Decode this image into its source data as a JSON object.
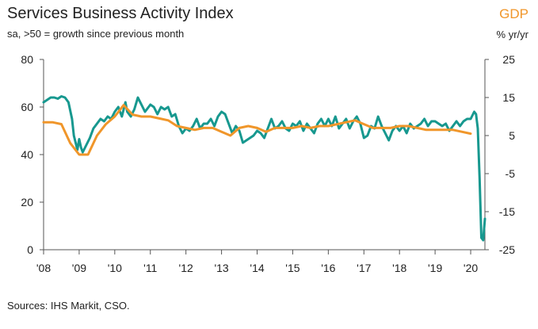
{
  "header": {
    "title": "Services Business Activity Index",
    "subtitle": "sa, >50 = growth since previous month",
    "right_title": "GDP",
    "right_unit": "% yr/yr"
  },
  "footer": {
    "source": "Sources: IHS Markit, CSO."
  },
  "colors": {
    "pmi": "#17988f",
    "gdp": "#f0962a",
    "axis": "#555555"
  },
  "chart_data": {
    "type": "line",
    "title": "Services Business Activity Index",
    "subtitle": "sa, >50 = growth since previous month",
    "x_tick_labels": [
      "'08",
      "'09",
      "'10",
      "'11",
      "'12",
      "'13",
      "'14",
      "'15",
      "'16",
      "'17",
      "'18",
      "'19",
      "'20"
    ],
    "x_range": [
      2008.0,
      2020.4
    ],
    "left_axis": {
      "range": [
        0,
        80
      ],
      "ticks": [
        0,
        20,
        40,
        60,
        80
      ],
      "label": "Services Business Activity Index"
    },
    "right_axis": {
      "range": [
        -25,
        25
      ],
      "ticks": [
        -25,
        -15,
        -5,
        5,
        15,
        25
      ],
      "label": "GDP % yr/yr"
    },
    "series": [
      {
        "name": "Services Business Activity Index",
        "axis": "left",
        "points": [
          [
            2008.0,
            62
          ],
          [
            2008.1,
            63
          ],
          [
            2008.2,
            64
          ],
          [
            2008.3,
            64
          ],
          [
            2008.4,
            63.5
          ],
          [
            2008.5,
            64.5
          ],
          [
            2008.6,
            64
          ],
          [
            2008.7,
            62
          ],
          [
            2008.8,
            55
          ],
          [
            2008.85,
            48
          ],
          [
            2008.95,
            42
          ],
          [
            2009.0,
            46.5
          ],
          [
            2009.05,
            43
          ],
          [
            2009.1,
            41
          ],
          [
            2009.2,
            44
          ],
          [
            2009.3,
            47
          ],
          [
            2009.4,
            51
          ],
          [
            2009.5,
            53
          ],
          [
            2009.6,
            55
          ],
          [
            2009.7,
            54
          ],
          [
            2009.8,
            56
          ],
          [
            2009.9,
            55
          ],
          [
            2010.0,
            58
          ],
          [
            2010.1,
            60
          ],
          [
            2010.2,
            56
          ],
          [
            2010.3,
            62
          ],
          [
            2010.35,
            58
          ],
          [
            2010.45,
            56
          ],
          [
            2010.55,
            59
          ],
          [
            2010.65,
            64
          ],
          [
            2010.75,
            61
          ],
          [
            2010.85,
            58
          ],
          [
            2011.0,
            61
          ],
          [
            2011.1,
            60
          ],
          [
            2011.2,
            57
          ],
          [
            2011.3,
            60
          ],
          [
            2011.4,
            59
          ],
          [
            2011.5,
            60
          ],
          [
            2011.6,
            56
          ],
          [
            2011.7,
            57
          ],
          [
            2011.8,
            52
          ],
          [
            2011.9,
            49
          ],
          [
            2012.0,
            51
          ],
          [
            2012.1,
            50
          ],
          [
            2012.2,
            52
          ],
          [
            2012.3,
            55
          ],
          [
            2012.4,
            51
          ],
          [
            2012.5,
            53
          ],
          [
            2012.6,
            53
          ],
          [
            2012.7,
            55
          ],
          [
            2012.8,
            52
          ],
          [
            2012.9,
            56
          ],
          [
            2013.0,
            58
          ],
          [
            2013.1,
            57
          ],
          [
            2013.2,
            53
          ],
          [
            2013.3,
            49
          ],
          [
            2013.4,
            52
          ],
          [
            2013.5,
            50
          ],
          [
            2013.6,
            45
          ],
          [
            2013.7,
            46
          ],
          [
            2013.8,
            47
          ],
          [
            2013.9,
            48
          ],
          [
            2014.0,
            50
          ],
          [
            2014.1,
            49
          ],
          [
            2014.2,
            47
          ],
          [
            2014.3,
            51
          ],
          [
            2014.4,
            55
          ],
          [
            2014.5,
            51
          ],
          [
            2014.6,
            52
          ],
          [
            2014.7,
            54
          ],
          [
            2014.8,
            51
          ],
          [
            2014.9,
            50
          ],
          [
            2015.0,
            53
          ],
          [
            2015.1,
            52
          ],
          [
            2015.2,
            54
          ],
          [
            2015.3,
            50
          ],
          [
            2015.4,
            53
          ],
          [
            2015.5,
            51
          ],
          [
            2015.6,
            49
          ],
          [
            2015.7,
            53
          ],
          [
            2015.8,
            55
          ],
          [
            2015.9,
            52
          ],
          [
            2016.0,
            55
          ],
          [
            2016.1,
            52
          ],
          [
            2016.2,
            56
          ],
          [
            2016.3,
            51
          ],
          [
            2016.4,
            53
          ],
          [
            2016.5,
            55
          ],
          [
            2016.6,
            51
          ],
          [
            2016.7,
            54
          ],
          [
            2016.8,
            56
          ],
          [
            2016.9,
            53
          ],
          [
            2017.0,
            47
          ],
          [
            2017.1,
            48
          ],
          [
            2017.2,
            52
          ],
          [
            2017.3,
            51
          ],
          [
            2017.4,
            56
          ],
          [
            2017.5,
            52
          ],
          [
            2017.6,
            49
          ],
          [
            2017.7,
            46
          ],
          [
            2017.8,
            50
          ],
          [
            2017.9,
            52
          ],
          [
            2018.0,
            50
          ],
          [
            2018.1,
            52
          ],
          [
            2018.2,
            49
          ],
          [
            2018.3,
            53
          ],
          [
            2018.4,
            51
          ],
          [
            2018.5,
            52
          ],
          [
            2018.6,
            53
          ],
          [
            2018.7,
            55
          ],
          [
            2018.8,
            52
          ],
          [
            2018.9,
            54
          ],
          [
            2019.0,
            54
          ],
          [
            2019.1,
            53
          ],
          [
            2019.2,
            52
          ],
          [
            2019.3,
            53
          ],
          [
            2019.4,
            50
          ],
          [
            2019.5,
            52
          ],
          [
            2019.6,
            54
          ],
          [
            2019.7,
            52
          ],
          [
            2019.8,
            54
          ],
          [
            2019.9,
            55
          ],
          [
            2020.0,
            55
          ],
          [
            2020.1,
            58
          ],
          [
            2020.15,
            57
          ],
          [
            2020.2,
            51
          ],
          [
            2020.25,
            30
          ],
          [
            2020.3,
            5
          ],
          [
            2020.35,
            4
          ],
          [
            2020.4,
            13
          ]
        ]
      },
      {
        "name": "GDP % yr/yr",
        "axis": "right",
        "points": [
          [
            2008.0,
            8.5
          ],
          [
            2008.25,
            8.5
          ],
          [
            2008.5,
            8
          ],
          [
            2008.75,
            3
          ],
          [
            2009.0,
            0
          ],
          [
            2009.25,
            0
          ],
          [
            2009.5,
            5
          ],
          [
            2009.75,
            8
          ],
          [
            2010.0,
            10
          ],
          [
            2010.25,
            13
          ],
          [
            2010.5,
            10.5
          ],
          [
            2010.75,
            10
          ],
          [
            2011.0,
            10
          ],
          [
            2011.25,
            9.5
          ],
          [
            2011.5,
            9
          ],
          [
            2011.75,
            7.5
          ],
          [
            2012.0,
            7
          ],
          [
            2012.25,
            6.5
          ],
          [
            2012.5,
            7
          ],
          [
            2012.75,
            7
          ],
          [
            2013.0,
            6
          ],
          [
            2013.25,
            5
          ],
          [
            2013.5,
            7
          ],
          [
            2013.75,
            7.5
          ],
          [
            2014.0,
            7
          ],
          [
            2014.25,
            6
          ],
          [
            2014.5,
            7
          ],
          [
            2014.75,
            7
          ],
          [
            2015.0,
            7
          ],
          [
            2015.25,
            7.5
          ],
          [
            2015.5,
            7
          ],
          [
            2015.75,
            7.5
          ],
          [
            2016.0,
            7.5
          ],
          [
            2016.25,
            8
          ],
          [
            2016.5,
            8.5
          ],
          [
            2016.75,
            9
          ],
          [
            2017.0,
            8
          ],
          [
            2017.25,
            7
          ],
          [
            2017.5,
            7
          ],
          [
            2017.75,
            7
          ],
          [
            2018.0,
            7.5
          ],
          [
            2018.25,
            7.5
          ],
          [
            2018.5,
            7
          ],
          [
            2018.75,
            6.5
          ],
          [
            2019.0,
            6.5
          ],
          [
            2019.25,
            6.5
          ],
          [
            2019.5,
            6.5
          ],
          [
            2019.75,
            6
          ],
          [
            2020.0,
            5.5
          ]
        ]
      }
    ]
  }
}
